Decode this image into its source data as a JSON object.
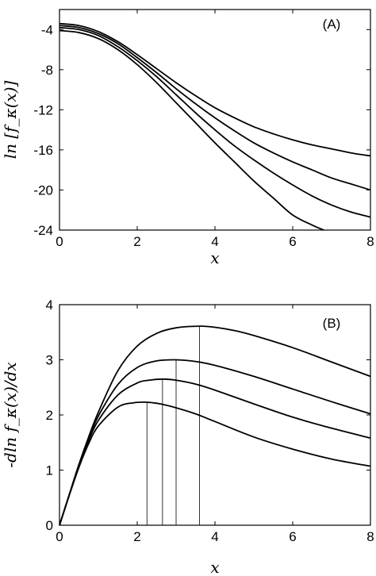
{
  "chart_data": [
    {
      "type": "line",
      "panel_label": "(A)",
      "xlabel": "x",
      "ylabel": "ln [f_κ(x)]",
      "xlim": [
        0,
        8
      ],
      "ylim": [
        -24,
        -2
      ],
      "xticks": [
        0,
        2,
        4,
        6,
        8
      ],
      "yticks": [
        -4,
        -8,
        -12,
        -16,
        -20,
        -24
      ],
      "xtick_labels": [
        "0",
        "2",
        "4",
        "6",
        "8"
      ],
      "ytick_labels": [
        "-4",
        "-8",
        "-12",
        "-16",
        "-20",
        "-24"
      ],
      "series": [
        {
          "x": [
            0,
            0.5,
            1,
            1.5,
            2,
            2.5,
            3,
            3.5,
            4,
            4.5,
            5,
            5.5,
            6,
            6.5,
            7,
            7.5,
            8
          ],
          "values": [
            -3.4,
            -3.6,
            -4.2,
            -5.2,
            -6.5,
            -7.9,
            -9.3,
            -10.6,
            -11.8,
            -12.8,
            -13.7,
            -14.4,
            -15.0,
            -15.5,
            -15.9,
            -16.3,
            -16.6
          ]
        },
        {
          "x": [
            0,
            0.5,
            1,
            1.5,
            2,
            2.5,
            3,
            3.5,
            4,
            4.5,
            5,
            5.5,
            6,
            6.5,
            7,
            7.5,
            8
          ],
          "values": [
            -3.6,
            -3.8,
            -4.4,
            -5.4,
            -6.8,
            -8.3,
            -9.9,
            -11.4,
            -12.8,
            -14.1,
            -15.3,
            -16.3,
            -17.2,
            -18.0,
            -18.8,
            -19.4,
            -20.0
          ]
        },
        {
          "x": [
            0,
            0.5,
            1,
            1.5,
            2,
            2.5,
            3,
            3.5,
            4,
            4.5,
            5,
            5.5,
            6,
            6.5,
            7,
            7.5,
            8
          ],
          "values": [
            -3.8,
            -4.0,
            -4.6,
            -5.7,
            -7.1,
            -8.7,
            -10.5,
            -12.3,
            -14.0,
            -15.6,
            -17.0,
            -18.3,
            -19.5,
            -20.6,
            -21.5,
            -22.2,
            -22.7
          ]
        },
        {
          "x": [
            0,
            0.5,
            1,
            1.5,
            2,
            2.5,
            3,
            3.5,
            4,
            4.5,
            5,
            5.5,
            6,
            6.5,
            6.8
          ],
          "values": [
            -4.1,
            -4.3,
            -4.9,
            -6.0,
            -7.5,
            -9.3,
            -11.3,
            -13.3,
            -15.3,
            -17.2,
            -19.1,
            -20.8,
            -22.5,
            -23.5,
            -24.0
          ]
        }
      ]
    },
    {
      "type": "line",
      "panel_label": "(B)",
      "xlabel": "x",
      "ylabel": "-dln f_κ(x)/dx",
      "xlim": [
        0,
        8
      ],
      "ylim": [
        0,
        4
      ],
      "xticks": [
        0,
        2,
        4,
        6,
        8
      ],
      "yticks": [
        0,
        1,
        2,
        3,
        4
      ],
      "xtick_labels": [
        "0",
        "2",
        "4",
        "6",
        "8"
      ],
      "ytick_labels": [
        "0",
        "1",
        "2",
        "3",
        "4"
      ],
      "series": [
        {
          "x": [
            0,
            0.25,
            0.5,
            0.75,
            1,
            1.5,
            2,
            2.5,
            3,
            3.6,
            4,
            4.5,
            5,
            6,
            7,
            8
          ],
          "values": [
            0,
            0.55,
            1.1,
            1.6,
            2.05,
            2.8,
            3.25,
            3.48,
            3.58,
            3.61,
            3.59,
            3.53,
            3.44,
            3.22,
            2.96,
            2.7
          ],
          "peak_x": 3.6
        },
        {
          "x": [
            0,
            0.25,
            0.5,
            0.75,
            1,
            1.5,
            2,
            2.5,
            3,
            3.5,
            4,
            5,
            6,
            7,
            8
          ],
          "values": [
            0,
            0.55,
            1.1,
            1.58,
            1.98,
            2.55,
            2.86,
            2.98,
            3.0,
            2.97,
            2.9,
            2.7,
            2.47,
            2.24,
            2.02
          ],
          "peak_x": 3.0
        },
        {
          "x": [
            0,
            0.25,
            0.5,
            0.75,
            1,
            1.5,
            2,
            2.3,
            2.65,
            3,
            3.5,
            4,
            5,
            6,
            7,
            8
          ],
          "values": [
            0,
            0.55,
            1.08,
            1.54,
            1.9,
            2.36,
            2.58,
            2.63,
            2.65,
            2.63,
            2.56,
            2.45,
            2.2,
            1.96,
            1.76,
            1.58
          ],
          "peak_x": 2.65
        },
        {
          "x": [
            0,
            0.25,
            0.5,
            0.75,
            1,
            1.5,
            1.9,
            2.25,
            2.6,
            3,
            3.5,
            4,
            5,
            6,
            7,
            8
          ],
          "values": [
            0,
            0.54,
            1.05,
            1.48,
            1.8,
            2.14,
            2.22,
            2.23,
            2.2,
            2.13,
            2.02,
            1.88,
            1.6,
            1.38,
            1.2,
            1.07
          ],
          "peak_x": 2.25
        }
      ]
    }
  ]
}
